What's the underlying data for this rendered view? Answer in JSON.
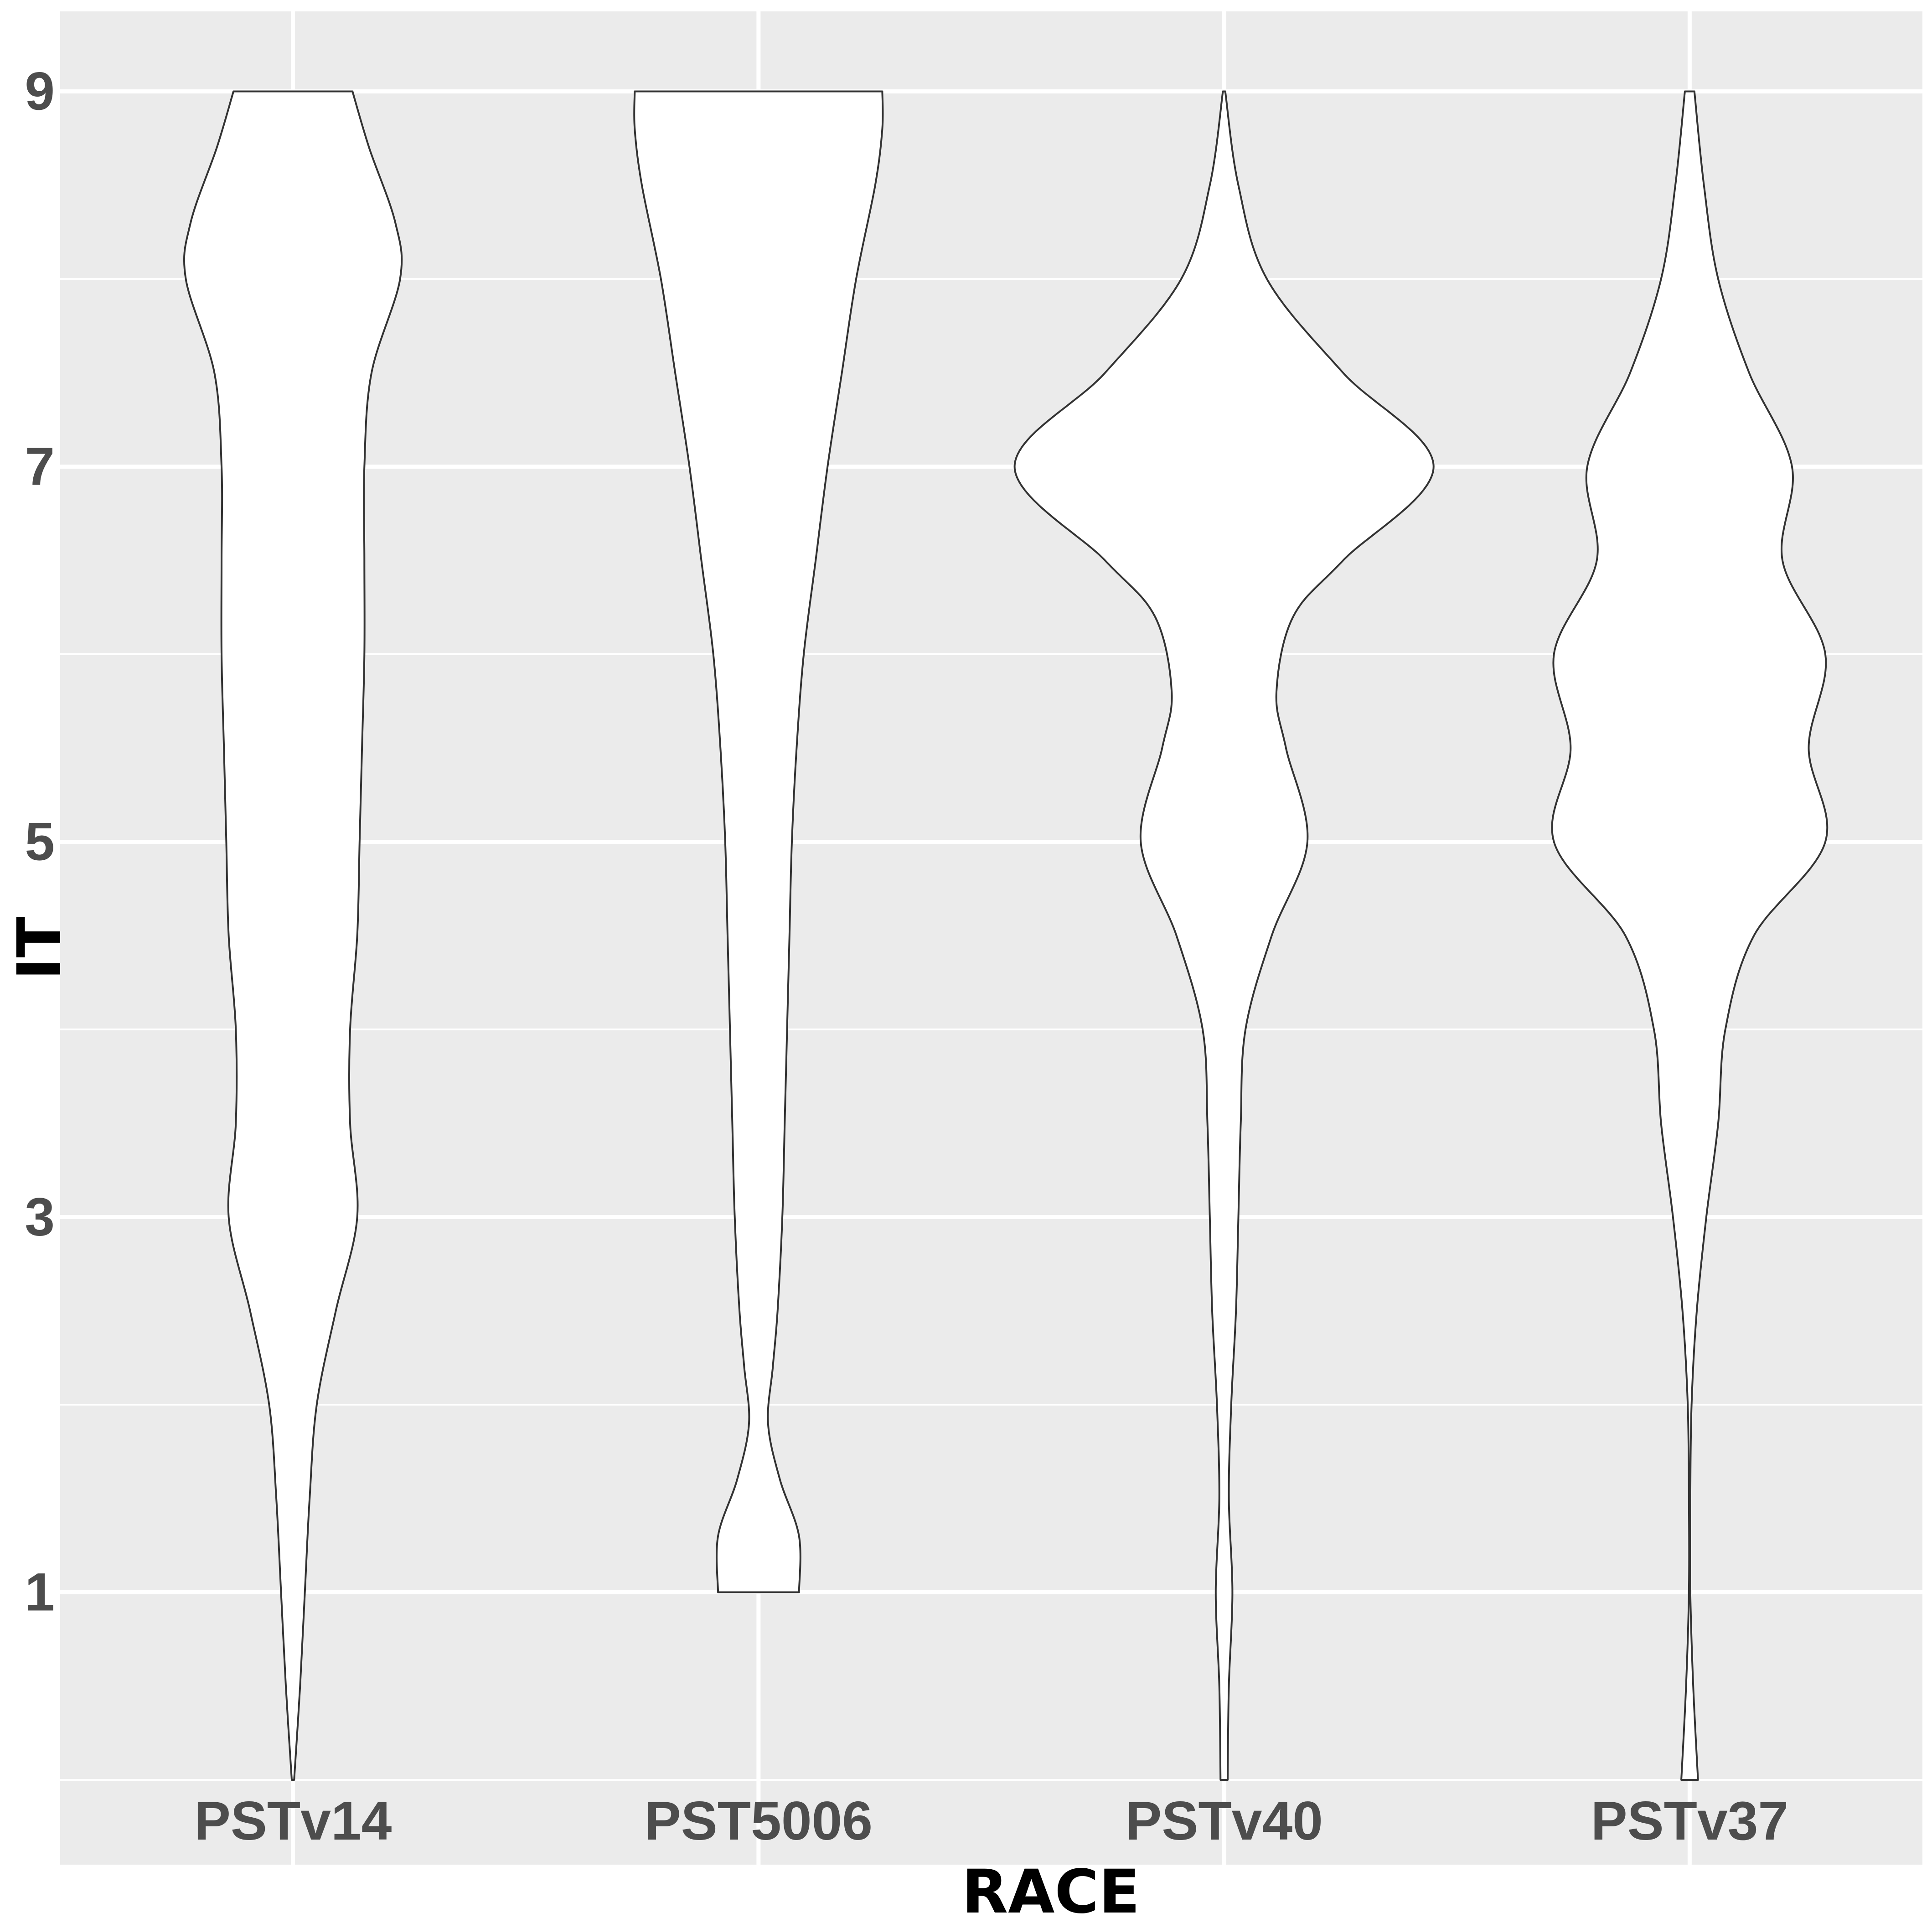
{
  "chart_data": {
    "type": "violin",
    "xlabel": "RACE",
    "ylabel": "IT",
    "categories": [
      "PSTv14",
      "PST5006",
      "PSTv40",
      "PSTv37"
    ],
    "y_ticks": [
      1,
      3,
      5,
      7,
      9
    ],
    "ylim": [
      -0.1,
      9.45
    ],
    "grid": true,
    "colors": {
      "panel": "#ebebeb",
      "grid": "#ffffff",
      "fill": "#ffffff",
      "outline": "#333333"
    },
    "series": [
      {
        "name": "PSTv14",
        "min": 0,
        "max": 9,
        "profile": [
          [
            0,
            0.005
          ],
          [
            0.5,
            0.03
          ],
          [
            1,
            0.05
          ],
          [
            1.5,
            0.07
          ],
          [
            2,
            0.1
          ],
          [
            2.5,
            0.18
          ],
          [
            3,
            0.27
          ],
          [
            3.5,
            0.24
          ],
          [
            4,
            0.24
          ],
          [
            4.5,
            0.27
          ],
          [
            5,
            0.28
          ],
          [
            5.5,
            0.29
          ],
          [
            6,
            0.3
          ],
          [
            6.5,
            0.3
          ],
          [
            7,
            0.3
          ],
          [
            7.5,
            0.33
          ],
          [
            8,
            0.45
          ],
          [
            8.3,
            0.43
          ],
          [
            8.7,
            0.32
          ],
          [
            9,
            0.25
          ]
        ]
      },
      {
        "name": "PST5006",
        "min": 1,
        "max": 9,
        "profile": [
          [
            1,
            0.17
          ],
          [
            1.3,
            0.17
          ],
          [
            1.6,
            0.09
          ],
          [
            1.9,
            0.04
          ],
          [
            2.2,
            0.06
          ],
          [
            2.5,
            0.08
          ],
          [
            3,
            0.1
          ],
          [
            3.5,
            0.11
          ],
          [
            4,
            0.12
          ],
          [
            4.5,
            0.13
          ],
          [
            5,
            0.14
          ],
          [
            5.5,
            0.16
          ],
          [
            6,
            0.19
          ],
          [
            6.5,
            0.24
          ],
          [
            7,
            0.29
          ],
          [
            7.5,
            0.35
          ],
          [
            8,
            0.41
          ],
          [
            8.5,
            0.49
          ],
          [
            8.8,
            0.52
          ],
          [
            9,
            0.52
          ]
        ]
      },
      {
        "name": "PSTv40",
        "min": 0,
        "max": 9,
        "profile": [
          [
            0,
            0.015
          ],
          [
            0.5,
            0.02
          ],
          [
            1,
            0.035
          ],
          [
            1.5,
            0.02
          ],
          [
            2,
            0.03
          ],
          [
            2.5,
            0.05
          ],
          [
            3,
            0.06
          ],
          [
            3.5,
            0.07
          ],
          [
            4,
            0.09
          ],
          [
            4.5,
            0.2
          ],
          [
            5,
            0.35
          ],
          [
            5.5,
            0.26
          ],
          [
            5.8,
            0.22
          ],
          [
            6.2,
            0.29
          ],
          [
            6.5,
            0.5
          ],
          [
            7,
            0.88
          ],
          [
            7.5,
            0.5
          ],
          [
            8,
            0.18
          ],
          [
            8.5,
            0.06
          ],
          [
            9,
            0.005
          ]
        ]
      },
      {
        "name": "PSTv37",
        "min": 0,
        "max": 9,
        "profile": [
          [
            0,
            0.035
          ],
          [
            0.5,
            0.015
          ],
          [
            1,
            0.003
          ],
          [
            1.5,
            0.003
          ],
          [
            2,
            0.008
          ],
          [
            2.5,
            0.03
          ],
          [
            3,
            0.07
          ],
          [
            3.5,
            0.12
          ],
          [
            4,
            0.15
          ],
          [
            4.5,
            0.27
          ],
          [
            5,
            0.57
          ],
          [
            5.5,
            0.5
          ],
          [
            6,
            0.57
          ],
          [
            6.5,
            0.39
          ],
          [
            7,
            0.43
          ],
          [
            7.5,
            0.25
          ],
          [
            8,
            0.12
          ],
          [
            8.5,
            0.06
          ],
          [
            9,
            0.02
          ]
        ]
      }
    ]
  }
}
